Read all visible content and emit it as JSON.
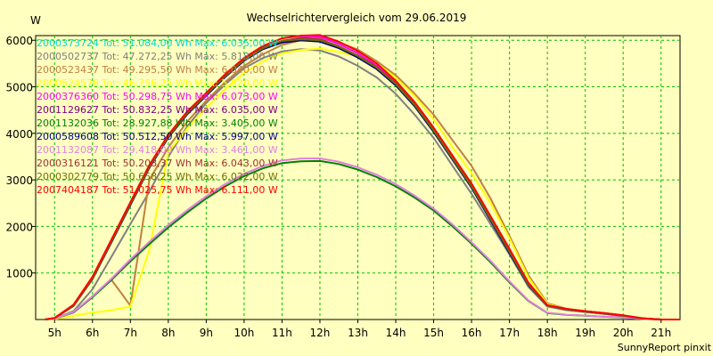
{
  "chart_data": {
    "type": "line",
    "title": "Wechselrichtervergleich vom 29.06.2019",
    "ylabel": "W",
    "credit": "SunnyReport pinxit",
    "xlim": [
      4.5,
      21.5
    ],
    "ylim": [
      0,
      6100
    ],
    "grid": true,
    "legend_position": "top-left",
    "x_ticks": [
      5,
      6,
      7,
      8,
      9,
      10,
      11,
      12,
      13,
      14,
      15,
      16,
      17,
      18,
      19,
      20,
      21
    ],
    "x_tick_labels": [
      "5h",
      "6h",
      "7h",
      "8h",
      "9h",
      "10h",
      "11h",
      "12h",
      "13h",
      "14h",
      "15h",
      "16h",
      "17h",
      "18h",
      "19h",
      "20h",
      "21h"
    ],
    "y_ticks": [
      1000,
      2000,
      3000,
      4000,
      5000,
      6000
    ],
    "y_tick_labels": [
      "1000",
      "2000",
      "3000",
      "4000",
      "5000",
      "6000"
    ],
    "x": [
      4.75,
      5,
      5.5,
      6,
      6.5,
      7,
      7.5,
      8,
      8.5,
      9,
      9.5,
      10,
      10.5,
      11,
      11.5,
      12,
      12.5,
      13,
      13.5,
      14,
      14.5,
      15,
      15.5,
      16,
      16.5,
      17,
      17.5,
      18,
      18.5,
      19,
      19.5,
      20,
      20.5,
      21,
      21.5
    ],
    "series": [
      {
        "name": "2000373724 Tot: 51.084,00 Wh Max: 6.035,00 W",
        "color": "#00d8d8",
        "values": [
          0,
          30,
          300,
          900,
          1700,
          2500,
          3300,
          3950,
          4450,
          4850,
          5250,
          5600,
          5850,
          5980,
          6030,
          6000,
          5850,
          5650,
          5400,
          5050,
          4600,
          4050,
          3450,
          2850,
          2150,
          1450,
          750,
          300,
          220,
          170,
          130,
          80,
          25,
          0,
          0
        ]
      },
      {
        "name": "2000502737 Tot: 47.272,25 Wh Max: 5.818,00 W",
        "color": "#808080",
        "values": [
          0,
          20,
          180,
          650,
          1350,
          2050,
          2750,
          3500,
          4150,
          4650,
          5050,
          5400,
          5620,
          5760,
          5810,
          5780,
          5650,
          5450,
          5200,
          4850,
          4400,
          3900,
          3300,
          2700,
          2050,
          1400,
          700,
          280,
          200,
          160,
          120,
          70,
          20,
          0,
          0
        ]
      },
      {
        "name": "2000523437 Tot: 49.295,50 Wh Max: 6.040,00 W",
        "color": "#c08040",
        "values": [
          0,
          20,
          160,
          500,
          850,
          300,
          3000,
          3700,
          4250,
          4700,
          5100,
          5450,
          5700,
          5900,
          6000,
          6040,
          5950,
          5800,
          5550,
          5250,
          4850,
          4400,
          3850,
          3300,
          2600,
          1800,
          950,
          350,
          230,
          180,
          140,
          90,
          30,
          0,
          0
        ]
      },
      {
        "name": "2000524576 Tot: 46.756,25 Wh Max: 5.820,00 W",
        "color": "#ffff00",
        "values": [
          0,
          10,
          80,
          150,
          200,
          280,
          1500,
          3600,
          4100,
          4550,
          4950,
          5300,
          5550,
          5720,
          5790,
          5820,
          5750,
          5650,
          5500,
          5200,
          4800,
          4300,
          3700,
          3150,
          2500,
          1750,
          900,
          330,
          220,
          170,
          130,
          80,
          25,
          0,
          0
        ]
      },
      {
        "name": "2000376360 Tot: 50.298,75 Wh Max: 6.073,00 W",
        "color": "#ff00ff",
        "values": [
          0,
          30,
          300,
          880,
          1680,
          2480,
          3280,
          3930,
          4430,
          4830,
          5230,
          5580,
          5830,
          5980,
          6060,
          6073,
          5920,
          5720,
          5450,
          5080,
          4620,
          4070,
          3470,
          2870,
          2170,
          1470,
          760,
          305,
          225,
          175,
          135,
          85,
          25,
          0,
          0
        ]
      },
      {
        "name": "2001129627 Tot: 50.832,25 Wh Max: 6.035,00 W",
        "color": "#800080",
        "values": [
          0,
          30,
          300,
          890,
          1690,
          2490,
          3290,
          3940,
          4440,
          4840,
          5240,
          5590,
          5840,
          5980,
          6035,
          6005,
          5860,
          5660,
          5410,
          5060,
          4610,
          4060,
          3460,
          2860,
          2160,
          1460,
          755,
          302,
          222,
          172,
          132,
          82,
          25,
          0,
          0
        ]
      },
      {
        "name": "2001132036 Tot: 28.927,88 Wh Max: 3.405,00 W",
        "color": "#008000",
        "values": [
          0,
          20,
          150,
          480,
          850,
          1250,
          1620,
          1980,
          2300,
          2600,
          2860,
          3080,
          3250,
          3360,
          3400,
          3405,
          3340,
          3220,
          3060,
          2860,
          2620,
          2340,
          2000,
          1630,
          1230,
          800,
          400,
          140,
          100,
          80,
          60,
          40,
          15,
          0,
          0
        ]
      },
      {
        "name": "2000589608 Tot: 50.512,50 Wh Max: 5.997,00 W",
        "color": "#000080",
        "values": [
          0,
          30,
          290,
          870,
          1660,
          2460,
          3260,
          3910,
          4410,
          4810,
          5210,
          5560,
          5810,
          5950,
          5997,
          5970,
          5830,
          5630,
          5380,
          5030,
          4580,
          4030,
          3430,
          2830,
          2130,
          1430,
          740,
          300,
          220,
          170,
          130,
          80,
          25,
          0,
          0
        ]
      },
      {
        "name": "2001132087 Tot: 29.418,00 Wh Max: 3.461,00 W",
        "color": "#e080e0",
        "values": [
          0,
          20,
          160,
          500,
          880,
          1290,
          1670,
          2030,
          2350,
          2650,
          2910,
          3130,
          3300,
          3420,
          3460,
          3461,
          3390,
          3270,
          3110,
          2910,
          2660,
          2380,
          2040,
          1660,
          1260,
          820,
          410,
          145,
          105,
          85,
          62,
          42,
          15,
          0,
          0
        ]
      },
      {
        "name": "2000316121 Tot: 50.208,37 Wh Max: 6.043,00 W",
        "color": "#a03030",
        "values": [
          0,
          30,
          300,
          880,
          1680,
          2480,
          3280,
          3930,
          4430,
          4830,
          5230,
          5580,
          5830,
          5990,
          6043,
          6020,
          5870,
          5670,
          5420,
          5070,
          4620,
          4070,
          3470,
          2870,
          2170,
          1470,
          760,
          305,
          225,
          175,
          135,
          85,
          25,
          0,
          0
        ]
      },
      {
        "name": "2000302779 Tot: 50.658,25 Wh Max: 6.022,00 W",
        "color": "#707000",
        "values": [
          0,
          30,
          300,
          885,
          1685,
          2485,
          3285,
          3935,
          4435,
          4835,
          5235,
          5585,
          5835,
          5985,
          6022,
          6000,
          5860,
          5660,
          5410,
          5060,
          4610,
          4060,
          3460,
          2860,
          2160,
          1460,
          755,
          302,
          222,
          172,
          132,
          82,
          25,
          0,
          0
        ]
      },
      {
        "name": "2007404187 Tot: 51.025,75 Wh Max: 6.111,00 W",
        "color": "#ff0000",
        "values": [
          0,
          35,
          320,
          920,
          1720,
          2520,
          3320,
          3970,
          4470,
          4870,
          5270,
          5620,
          5880,
          6040,
          6100,
          6111,
          5970,
          5770,
          5500,
          5130,
          4670,
          4120,
          3520,
          2920,
          2220,
          1520,
          790,
          310,
          230,
          180,
          140,
          90,
          25,
          0,
          0
        ]
      }
    ]
  }
}
